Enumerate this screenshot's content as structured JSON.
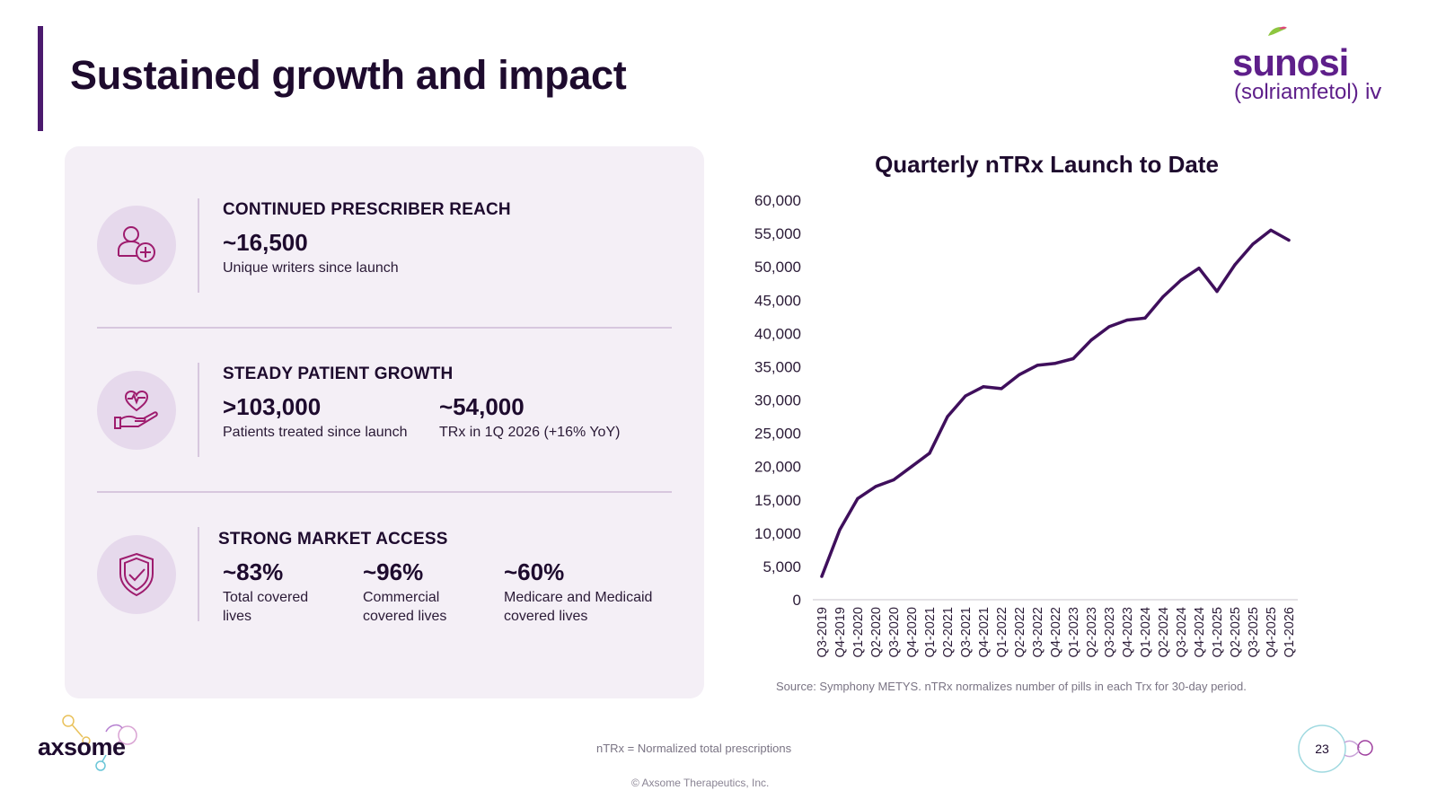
{
  "page": {
    "title": "Sustained growth and impact",
    "page_number": "23",
    "footnote": "nTRx = Normalized total prescriptions",
    "copyright": "© Axsome Therapeutics, Inc.",
    "accent_color": "#4b1a6e"
  },
  "brand": {
    "product_name": "sunosi",
    "generic_name": "(solriamfetol) ⅳ",
    "company_name": "axsome"
  },
  "panel": {
    "sections": [
      {
        "title": "CONTINUED PRESCRIBER REACH",
        "icon": "prescriber-add-icon",
        "stats": [
          {
            "value": "~16,500",
            "label": "Unique writers since launch"
          }
        ]
      },
      {
        "title": "STEADY PATIENT GROWTH",
        "icon": "heart-hand-icon",
        "stats": [
          {
            "value": ">103,000",
            "label": "Patients treated since launch"
          },
          {
            "value": "~54,000",
            "label": "TRx in 1Q 2026 (+16% YoY)"
          }
        ]
      },
      {
        "title": "STRONG MARKET ACCESS",
        "icon": "shield-check-icon",
        "stats": [
          {
            "value": "~83%",
            "label": "Total covered lives"
          },
          {
            "value": "~96%",
            "label": "Commercial covered lives"
          },
          {
            "value": "~60%",
            "label": "Medicare and Medicaid covered lives"
          }
        ]
      }
    ]
  },
  "chart_data": {
    "type": "line",
    "title": "Quarterly nTRx Launch to Date",
    "xlabel": "",
    "ylabel": "",
    "ylim": [
      0,
      60000
    ],
    "yticks": [
      "0",
      "5,000",
      "10,000",
      "15,000",
      "20,000",
      "25,000",
      "30,000",
      "35,000",
      "40,000",
      "45,000",
      "50,000",
      "55,000",
      "60,000"
    ],
    "grid": false,
    "line_color": "#3f0f5c",
    "categories": [
      "Q3-2019",
      "Q4-2019",
      "Q1-2020",
      "Q2-2020",
      "Q3-2020",
      "Q4-2020",
      "Q1-2021",
      "Q2-2021",
      "Q3-2021",
      "Q4-2021",
      "Q1-2022",
      "Q2-2022",
      "Q3-2022",
      "Q4-2022",
      "Q1-2023",
      "Q2-2023",
      "Q3-2023",
      "Q4-2023",
      "Q1-2024",
      "Q2-2024",
      "Q3-2024",
      "Q4-2024",
      "Q1-2025",
      "Q2-2025",
      "Q3-2025",
      "Q4-2025",
      "Q1-2026"
    ],
    "values": [
      3500,
      10500,
      15200,
      17000,
      18000,
      20000,
      22000,
      27500,
      30600,
      32000,
      31700,
      33800,
      35200,
      35500,
      36200,
      39000,
      41000,
      42000,
      42300,
      45500,
      48000,
      49800,
      46300,
      50300,
      53400,
      55500,
      54000
    ],
    "source": "Source: Symphony METYS. nTRx normalizes number of pills in each Trx for 30-day period."
  }
}
